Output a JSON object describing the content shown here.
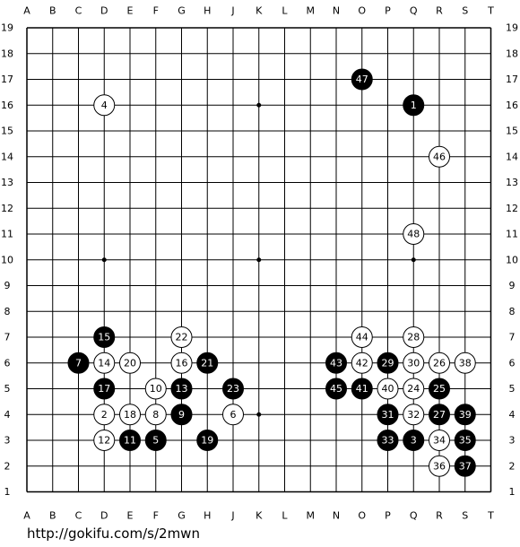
{
  "board": {
    "columns": [
      "A",
      "B",
      "C",
      "D",
      "E",
      "F",
      "G",
      "H",
      "J",
      "K",
      "L",
      "M",
      "N",
      "O",
      "P",
      "Q",
      "R",
      "S",
      "T"
    ],
    "rows": [
      19,
      18,
      17,
      16,
      15,
      14,
      13,
      12,
      11,
      10,
      9,
      8,
      7,
      6,
      5,
      4,
      3,
      2,
      1
    ],
    "stones": [
      {
        "number": 1,
        "color": "black",
        "col": "Q",
        "row": 16
      },
      {
        "number": 2,
        "color": "white",
        "col": "D",
        "row": 4
      },
      {
        "number": 3,
        "color": "black",
        "col": "Q",
        "row": 3
      },
      {
        "number": 4,
        "color": "white",
        "col": "D",
        "row": 16
      },
      {
        "number": 5,
        "color": "black",
        "col": "F",
        "row": 3
      },
      {
        "number": 6,
        "color": "white",
        "col": "J",
        "row": 4
      },
      {
        "number": 7,
        "color": "black",
        "col": "C",
        "row": 6
      },
      {
        "number": 8,
        "color": "white",
        "col": "F",
        "row": 4
      },
      {
        "number": 9,
        "color": "black",
        "col": "G",
        "row": 4
      },
      {
        "number": 10,
        "color": "white",
        "col": "F",
        "row": 5
      },
      {
        "number": 11,
        "color": "black",
        "col": "E",
        "row": 3
      },
      {
        "number": 12,
        "color": "white",
        "col": "D",
        "row": 3
      },
      {
        "number": 13,
        "color": "black",
        "col": "G",
        "row": 5
      },
      {
        "number": 14,
        "color": "white",
        "col": "D",
        "row": 6
      },
      {
        "number": 15,
        "color": "black",
        "col": "D",
        "row": 7
      },
      {
        "number": 16,
        "color": "white",
        "col": "G",
        "row": 6
      },
      {
        "number": 17,
        "color": "black",
        "col": "D",
        "row": 5
      },
      {
        "number": 18,
        "color": "white",
        "col": "E",
        "row": 4
      },
      {
        "number": 19,
        "color": "black",
        "col": "H",
        "row": 3
      },
      {
        "number": 20,
        "color": "white",
        "col": "E",
        "row": 6
      },
      {
        "number": 21,
        "color": "black",
        "col": "H",
        "row": 6
      },
      {
        "number": 22,
        "color": "white",
        "col": "G",
        "row": 7
      },
      {
        "number": 23,
        "color": "black",
        "col": "J",
        "row": 5
      },
      {
        "number": 24,
        "color": "white",
        "col": "Q",
        "row": 5
      },
      {
        "number": 25,
        "color": "black",
        "col": "R",
        "row": 5
      },
      {
        "number": 26,
        "color": "white",
        "col": "R",
        "row": 6
      },
      {
        "number": 27,
        "color": "black",
        "col": "R",
        "row": 4
      },
      {
        "number": 28,
        "color": "white",
        "col": "Q",
        "row": 7
      },
      {
        "number": 29,
        "color": "black",
        "col": "P",
        "row": 6
      },
      {
        "number": 30,
        "color": "white",
        "col": "Q",
        "row": 6
      },
      {
        "number": 31,
        "color": "black",
        "col": "P",
        "row": 4
      },
      {
        "number": 32,
        "color": "white",
        "col": "Q",
        "row": 4
      },
      {
        "number": 33,
        "color": "black",
        "col": "P",
        "row": 3
      },
      {
        "number": 34,
        "color": "white",
        "col": "R",
        "row": 3
      },
      {
        "number": 35,
        "color": "black",
        "col": "S",
        "row": 3
      },
      {
        "number": 36,
        "color": "white",
        "col": "R",
        "row": 2
      },
      {
        "number": 37,
        "color": "black",
        "col": "S",
        "row": 2
      },
      {
        "number": 38,
        "color": "white",
        "col": "S",
        "row": 6
      },
      {
        "number": 39,
        "color": "black",
        "col": "S",
        "row": 4
      },
      {
        "number": 40,
        "color": "white",
        "col": "P",
        "row": 5
      },
      {
        "number": 41,
        "color": "black",
        "col": "O",
        "row": 5
      },
      {
        "number": 42,
        "color": "white",
        "col": "O",
        "row": 6
      },
      {
        "number": 43,
        "color": "black",
        "col": "N",
        "row": 6
      },
      {
        "number": 44,
        "color": "white",
        "col": "O",
        "row": 7
      },
      {
        "number": 45,
        "color": "black",
        "col": "N",
        "row": 5
      },
      {
        "number": 46,
        "color": "white",
        "col": "R",
        "row": 14
      },
      {
        "number": 47,
        "color": "black",
        "col": "O",
        "row": 17
      },
      {
        "number": 48,
        "color": "white",
        "col": "Q",
        "row": 11
      }
    ]
  },
  "footer": {
    "url": "http://gokifu.com/s/2mwn"
  }
}
